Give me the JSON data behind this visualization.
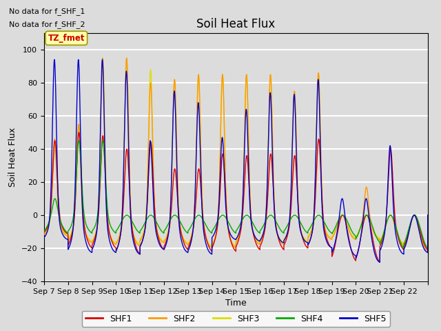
{
  "title": "Soil Heat Flux",
  "xlabel": "Time",
  "ylabel": "Soil Heat Flux",
  "ylim": [
    -40,
    110
  ],
  "yticks": [
    -40,
    -20,
    0,
    20,
    40,
    60,
    80,
    100
  ],
  "background_color": "#dcdcdc",
  "plot_bg_color": "#dcdcdc",
  "colors": {
    "SHF1": "#dd0000",
    "SHF2": "#ff9900",
    "SHF3": "#dddd00",
    "SHF4": "#00aa00",
    "SHF5": "#0000cc"
  },
  "annotations": [
    "No data for f_SHF_1",
    "No data for f_SHF_2"
  ],
  "legend_label": "TZ_fmet",
  "x_tick_labels": [
    "Sep 7",
    "Sep 8",
    "Sep 9",
    "Sep 10",
    "Sep 11",
    "Sep 12",
    "Sep 13",
    "Sep 14",
    "Sep 15",
    "Sep 16",
    "Sep 17",
    "Sep 18",
    "Sep 19",
    "Sep 20",
    "Sep 21",
    "Sep 22"
  ],
  "n_days": 16,
  "peaks_shf1": [
    45,
    50,
    48,
    40,
    44,
    28,
    28,
    37,
    36,
    37,
    36,
    46,
    0,
    0,
    40,
    0
  ],
  "peaks_shf2": [
    46,
    55,
    95,
    95,
    80,
    82,
    85,
    85,
    85,
    85,
    75,
    86,
    0,
    17,
    0,
    0
  ],
  "peaks_shf3": [
    43,
    53,
    92,
    94,
    88,
    82,
    84,
    85,
    85,
    85,
    74,
    86,
    0,
    0,
    0,
    0
  ],
  "peaks_shf4": [
    10,
    45,
    45,
    0,
    0,
    0,
    0,
    0,
    0,
    0,
    0,
    0,
    0,
    0,
    0,
    0
  ],
  "peaks_shf5": [
    94,
    94,
    94,
    87,
    45,
    75,
    68,
    47,
    64,
    74,
    73,
    82,
    10,
    10,
    42,
    0
  ],
  "nights_shf1": [
    -12,
    -21,
    -21,
    -25,
    -22,
    -22,
    -23,
    -23,
    -22,
    -22,
    -21,
    -21,
    -29,
    -30,
    -22,
    -22
  ],
  "nights_shf2": [
    -13,
    -17,
    -18,
    -19,
    -17,
    -18,
    -20,
    -20,
    -18,
    -18,
    -17,
    -15,
    -15,
    -15,
    -18,
    -22
  ],
  "nights_shf3": [
    -12,
    -16,
    -17,
    -18,
    -16,
    -17,
    -19,
    -19,
    -17,
    -17,
    -16,
    -14,
    -14,
    -14,
    -17,
    -20
  ],
  "nights_shf4": [
    -12,
    -12,
    -12,
    -12,
    -12,
    -12,
    -12,
    -12,
    -12,
    -12,
    -12,
    -12,
    -14,
    -18,
    -22,
    -22
  ],
  "nights_shf5": [
    -15,
    -23,
    -23,
    -24,
    -21,
    -23,
    -24,
    -15,
    -16,
    -17,
    -17,
    -20,
    -25,
    -29,
    -24,
    -23
  ]
}
